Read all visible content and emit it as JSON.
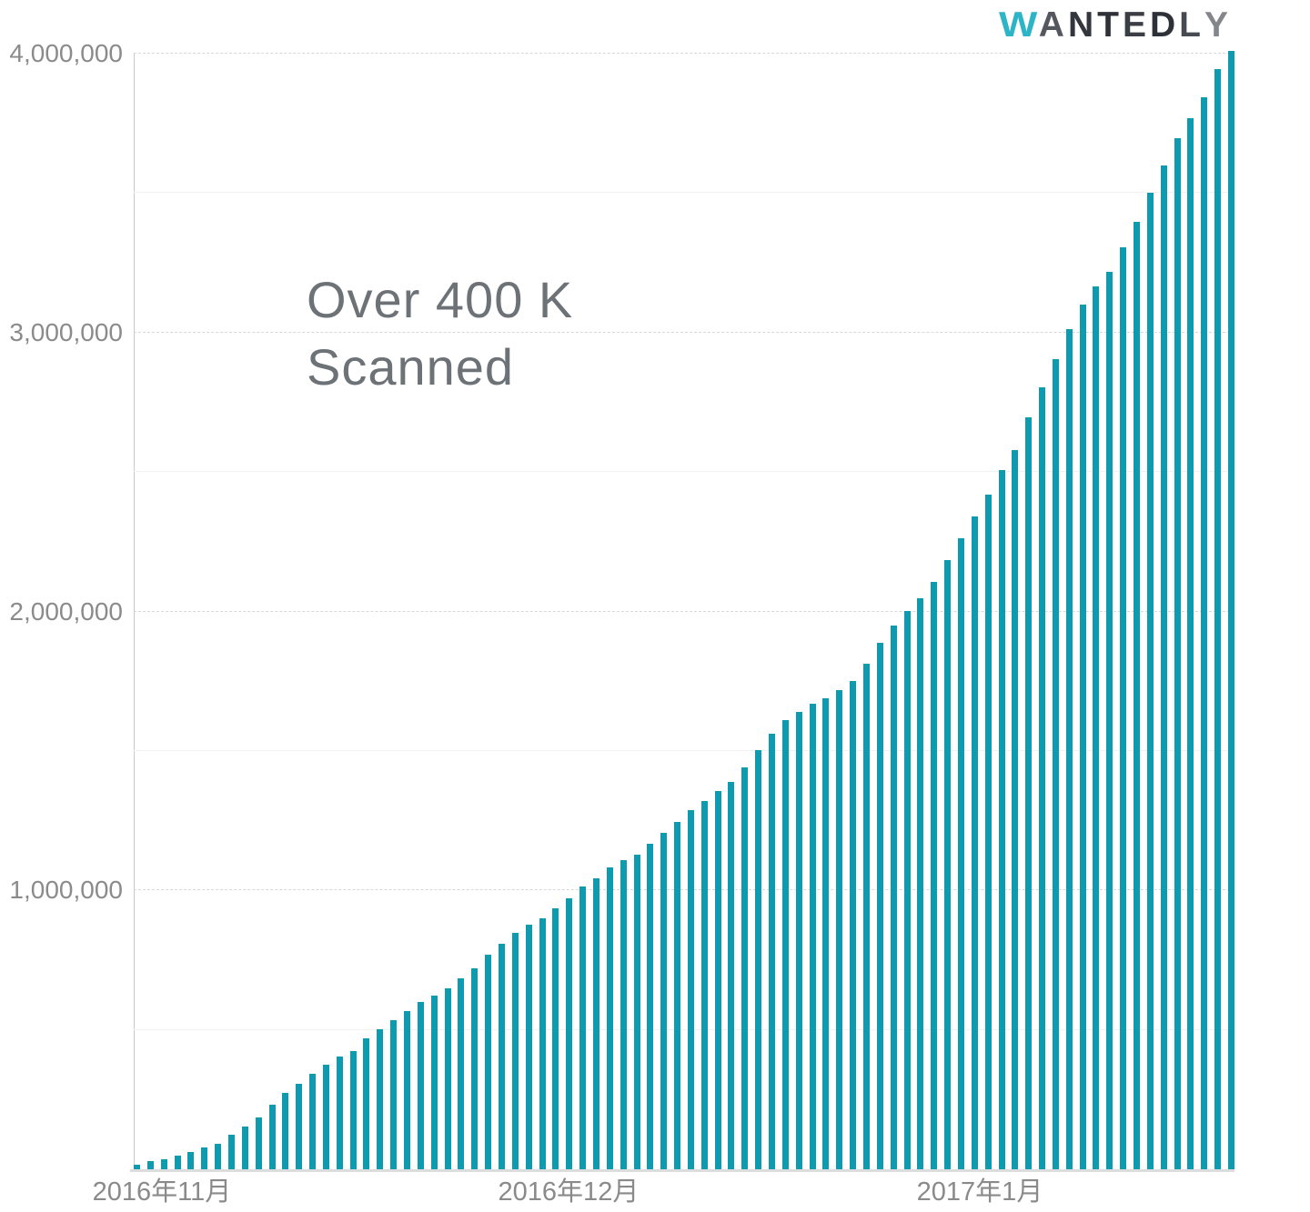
{
  "page": {
    "background": "#ffffff"
  },
  "logo": {
    "brand": "WANTEDLY",
    "accent_color": "#2db4c6",
    "text_color": "#33373d"
  },
  "annotation": {
    "line1": "Over 400 K",
    "line2": "Scanned",
    "color": "#6d7277"
  },
  "chart_data": {
    "type": "bar",
    "title": "Over 400 K Scanned",
    "bar_color": "#0e9bb0",
    "grid": "horizontal, minor lines every 500,000 (solid faint), major lines every 1,000,000 (dashed)",
    "legend_position": "none",
    "ylim": [
      0,
      4000000
    ],
    "y_tick_values": [
      1000000,
      2000000,
      3000000,
      4000000
    ],
    "y_tick_labels": [
      "1,000,000",
      "2,000,000",
      "3,000,000",
      "4,000,000"
    ],
    "minor_grid_interval": 500000,
    "x_tick_labels": [
      {
        "label": "2016年11月",
        "bar_index": 0
      },
      {
        "label": "2016年12月",
        "bar_index": 30
      },
      {
        "label": "2017年1月",
        "bar_index": 61
      }
    ],
    "values": [
      15000,
      30000,
      35000,
      48000,
      63000,
      77000,
      91000,
      123000,
      154000,
      186000,
      231000,
      273000,
      308000,
      343000,
      374000,
      403000,
      425000,
      468000,
      501000,
      534000,
      567000,
      599000,
      624000,
      648000,
      686000,
      722000,
      769000,
      809000,
      847000,
      878000,
      900000,
      937000,
      973000,
      1013000,
      1043000,
      1082000,
      1109000,
      1127000,
      1167000,
      1207000,
      1245000,
      1287000,
      1321000,
      1356000,
      1389000,
      1441000,
      1504000,
      1561000,
      1610000,
      1641000,
      1670000,
      1689000,
      1719000,
      1750000,
      1812000,
      1886000,
      1950000,
      2001000,
      2047000,
      2105000,
      2183000,
      2262000,
      2340000,
      2420000,
      2507000,
      2580000,
      2696000,
      2805000,
      2906000,
      3013000,
      3099000,
      3166000,
      3217000,
      3306000,
      3398000,
      3501000,
      3598000,
      3697000,
      3770000,
      3845000,
      3944000,
      4010000
    ]
  }
}
